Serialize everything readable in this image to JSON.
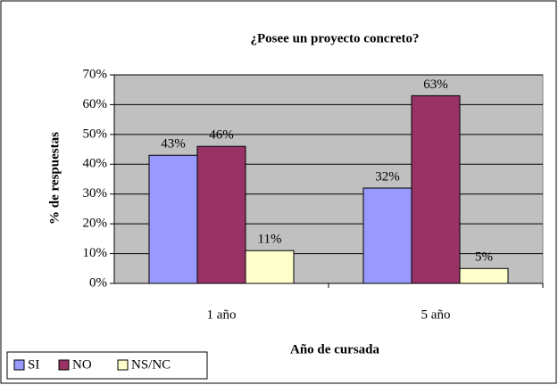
{
  "chart_data": {
    "type": "bar",
    "title": "¿Posee un proyecto concreto?",
    "y_label": "% de respuestas",
    "x_label": "Año de cursada",
    "categories": [
      "1 año",
      "5 año"
    ],
    "series": [
      {
        "name": "SI",
        "color": "#9999ff",
        "values": [
          43,
          32
        ],
        "value_labels": [
          "43%",
          "32%"
        ]
      },
      {
        "name": "NO",
        "color": "#993366",
        "values": [
          46,
          63
        ],
        "value_labels": [
          "46%",
          "63%"
        ]
      },
      {
        "name": "NS/NC",
        "color": "#ffffcc",
        "values": [
          11,
          5
        ],
        "value_labels": [
          "11%",
          "5%"
        ]
      }
    ],
    "ylim": [
      0,
      70
    ],
    "yticks": [
      {
        "value": 0,
        "label": "0%"
      },
      {
        "value": 10,
        "label": "10%"
      },
      {
        "value": 20,
        "label": "20%"
      },
      {
        "value": 30,
        "label": "30%"
      },
      {
        "value": 40,
        "label": "40%"
      },
      {
        "value": 50,
        "label": "50%"
      },
      {
        "value": 60,
        "label": "60%"
      },
      {
        "value": 70,
        "label": "70%"
      }
    ],
    "grid": true,
    "legend": "bottom-left",
    "plot_background": "#c0c0c0"
  }
}
